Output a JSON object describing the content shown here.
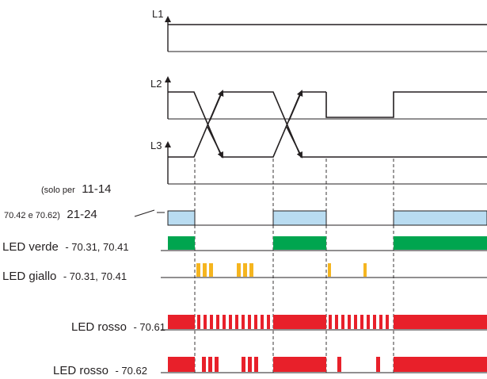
{
  "phases": {
    "L1": "L1",
    "L2": "L2",
    "L3": "L3"
  },
  "relay": {
    "line1_prefix": "(solo per",
    "line1_contact": "11-14",
    "line2_prefix": "70.42 e 70.62)",
    "line2_contact": "21-24"
  },
  "leds": {
    "verde": {
      "label": "LED verde",
      "models": "- 70.31, 70.41"
    },
    "giallo": {
      "label": "LED giallo",
      "models": "- 70.31, 70.41"
    },
    "rosso1": {
      "label": "LED rosso",
      "models": "- 70.61"
    },
    "rosso2": {
      "label": "LED rosso",
      "models": "- 70.62"
    }
  },
  "colors": {
    "relay_fill": "#b9dcf1",
    "green": "#00a54f",
    "yellow": "#f5b51f",
    "red": "#e8202a",
    "ink": "#231f20"
  }
}
